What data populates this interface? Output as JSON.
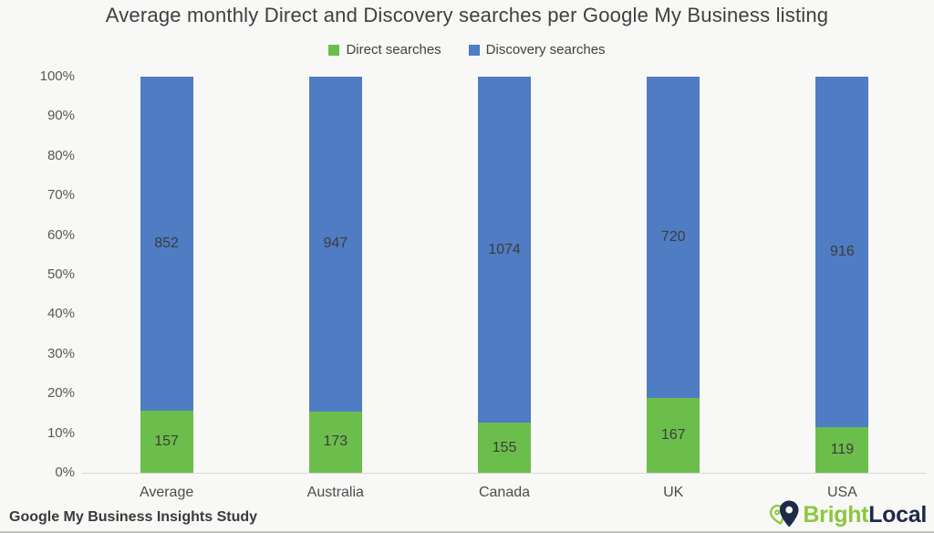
{
  "title": "Average monthly Direct and Discovery searches per Google My Business listing",
  "legend": [
    {
      "label": "Direct searches",
      "color": "#6cbe4c"
    },
    {
      "label": "Discovery searches",
      "color": "#4f7cc2"
    }
  ],
  "footer": {
    "source": "Google My Business Insights Study"
  },
  "logo": {
    "bright": "Bright",
    "local": "Local",
    "green": "#8dc63f",
    "navy": "#1e2a4a"
  },
  "chart_data": {
    "type": "bar",
    "stacked": true,
    "normalized": "percent",
    "title": "Average monthly Direct and Discovery searches per Google My Business listing",
    "categories": [
      "Average",
      "Australia",
      "Canada",
      "UK",
      "USA"
    ],
    "series": [
      {
        "name": "Direct searches",
        "color": "#6cbe4c",
        "values": [
          157,
          173,
          155,
          167,
          119
        ]
      },
      {
        "name": "Discovery searches",
        "color": "#4f7cc2",
        "values": [
          852,
          947,
          1074,
          720,
          916
        ]
      }
    ],
    "xlabel": "",
    "ylabel": "",
    "y_ticks": [
      "0%",
      "10%",
      "20%",
      "30%",
      "40%",
      "50%",
      "60%",
      "70%",
      "80%",
      "90%",
      "100%"
    ],
    "ylim": [
      0,
      100
    ],
    "grid": false,
    "legend_position": "top",
    "value_labels": "inside-segment-center"
  }
}
